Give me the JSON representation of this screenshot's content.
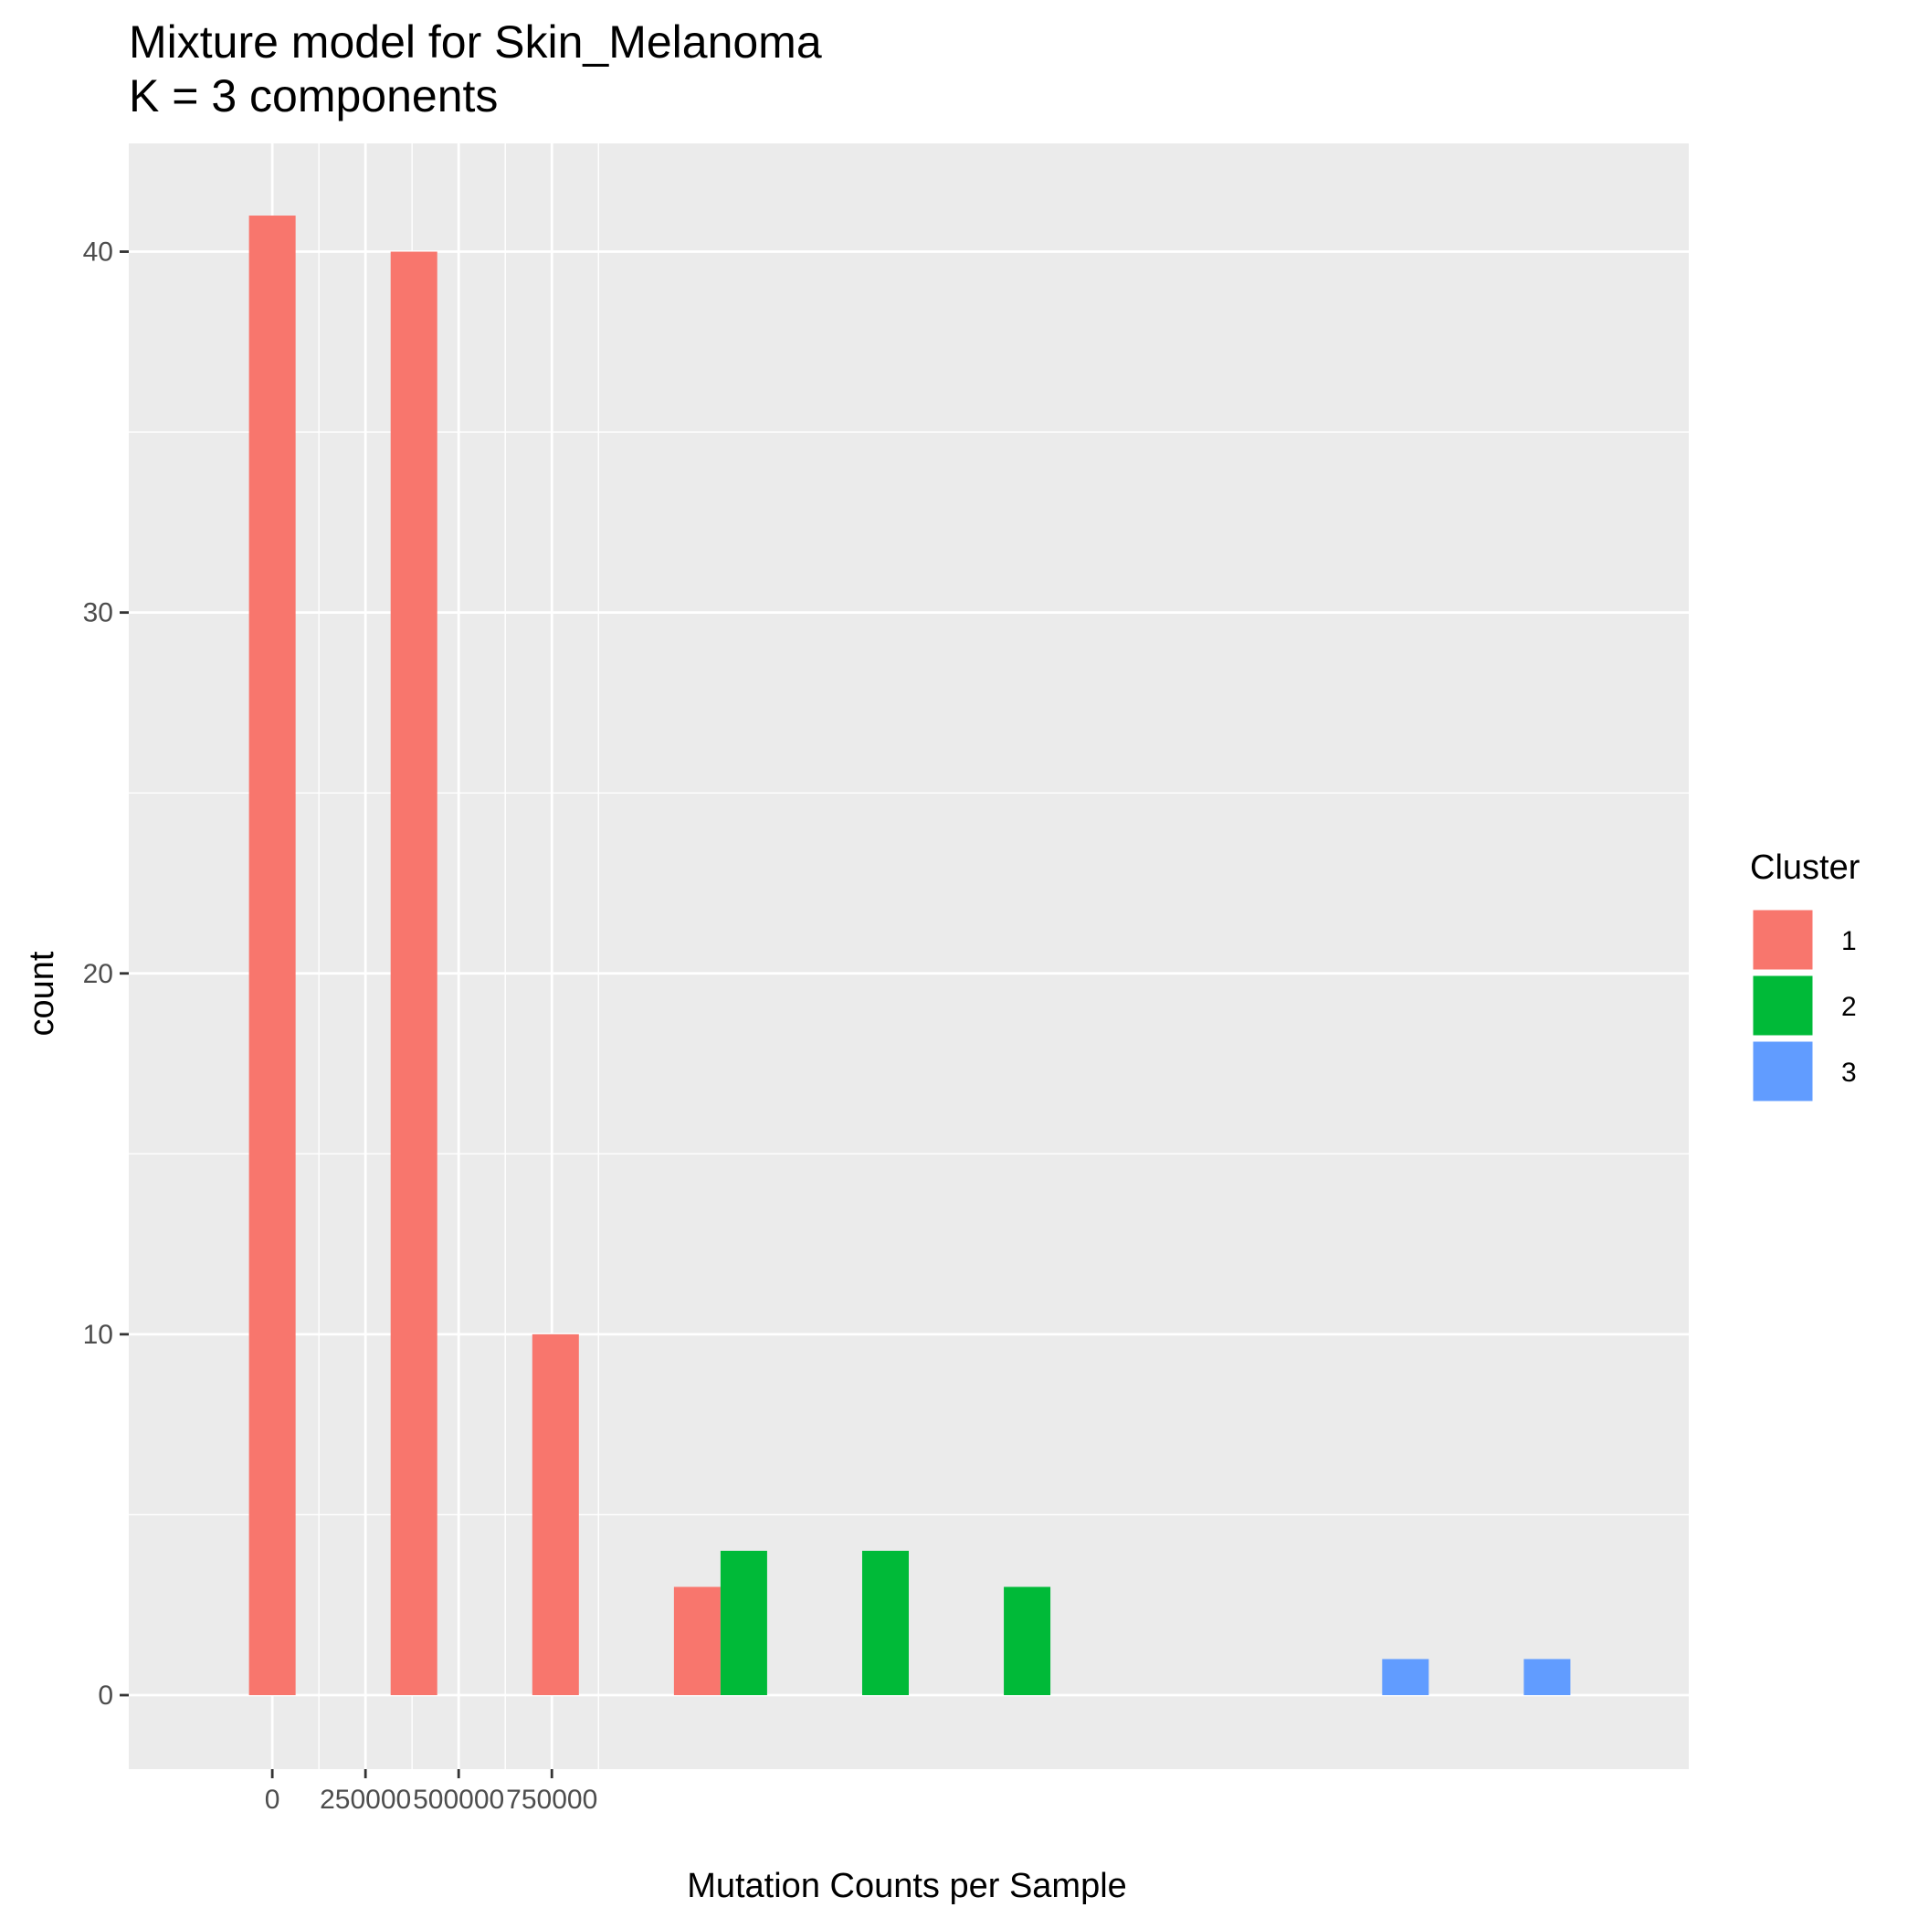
{
  "chart_data": {
    "type": "bar",
    "title": "Mixture model for Skin_Melanoma",
    "subtitle": "K = 3 components",
    "xlabel": "Mutation Counts per Sample",
    "ylabel": "count",
    "xlim": [
      -385000,
      3800000
    ],
    "ylim": [
      -2.05,
      43
    ],
    "x_ticks": [
      0,
      250000,
      500000,
      750000
    ],
    "x_tick_labels": [
      "0",
      "250000",
      "500000",
      "750000"
    ],
    "y_ticks": [
      0,
      10,
      20,
      30,
      40
    ],
    "y_tick_labels": [
      "0",
      "10",
      "20",
      "30",
      "40"
    ],
    "grid": true,
    "bin_width": 125000,
    "legend": {
      "title": "Cluster",
      "placement": "right",
      "entries": [
        {
          "label": "1",
          "color": "#F8766D"
        },
        {
          "label": "2",
          "color": "#00BA38"
        },
        {
          "label": "3",
          "color": "#619CFF"
        }
      ]
    },
    "series": [
      {
        "name": "1",
        "color": "#F8766D",
        "bins": [
          {
            "x": 0,
            "count": 41
          },
          {
            "x": 380000,
            "count": 40
          },
          {
            "x": 760000,
            "count": 10
          },
          {
            "x": 1140000,
            "count": 3
          }
        ]
      },
      {
        "name": "2",
        "color": "#00BA38",
        "bins": [
          {
            "x": 1140000,
            "count": 4
          },
          {
            "x": 1520000,
            "count": 4
          },
          {
            "x": 1900000,
            "count": 3
          }
        ]
      },
      {
        "name": "3",
        "color": "#619CFF",
        "bins": [
          {
            "x": 3040000,
            "count": 1
          },
          {
            "x": 3420000,
            "count": 1
          }
        ]
      }
    ]
  }
}
